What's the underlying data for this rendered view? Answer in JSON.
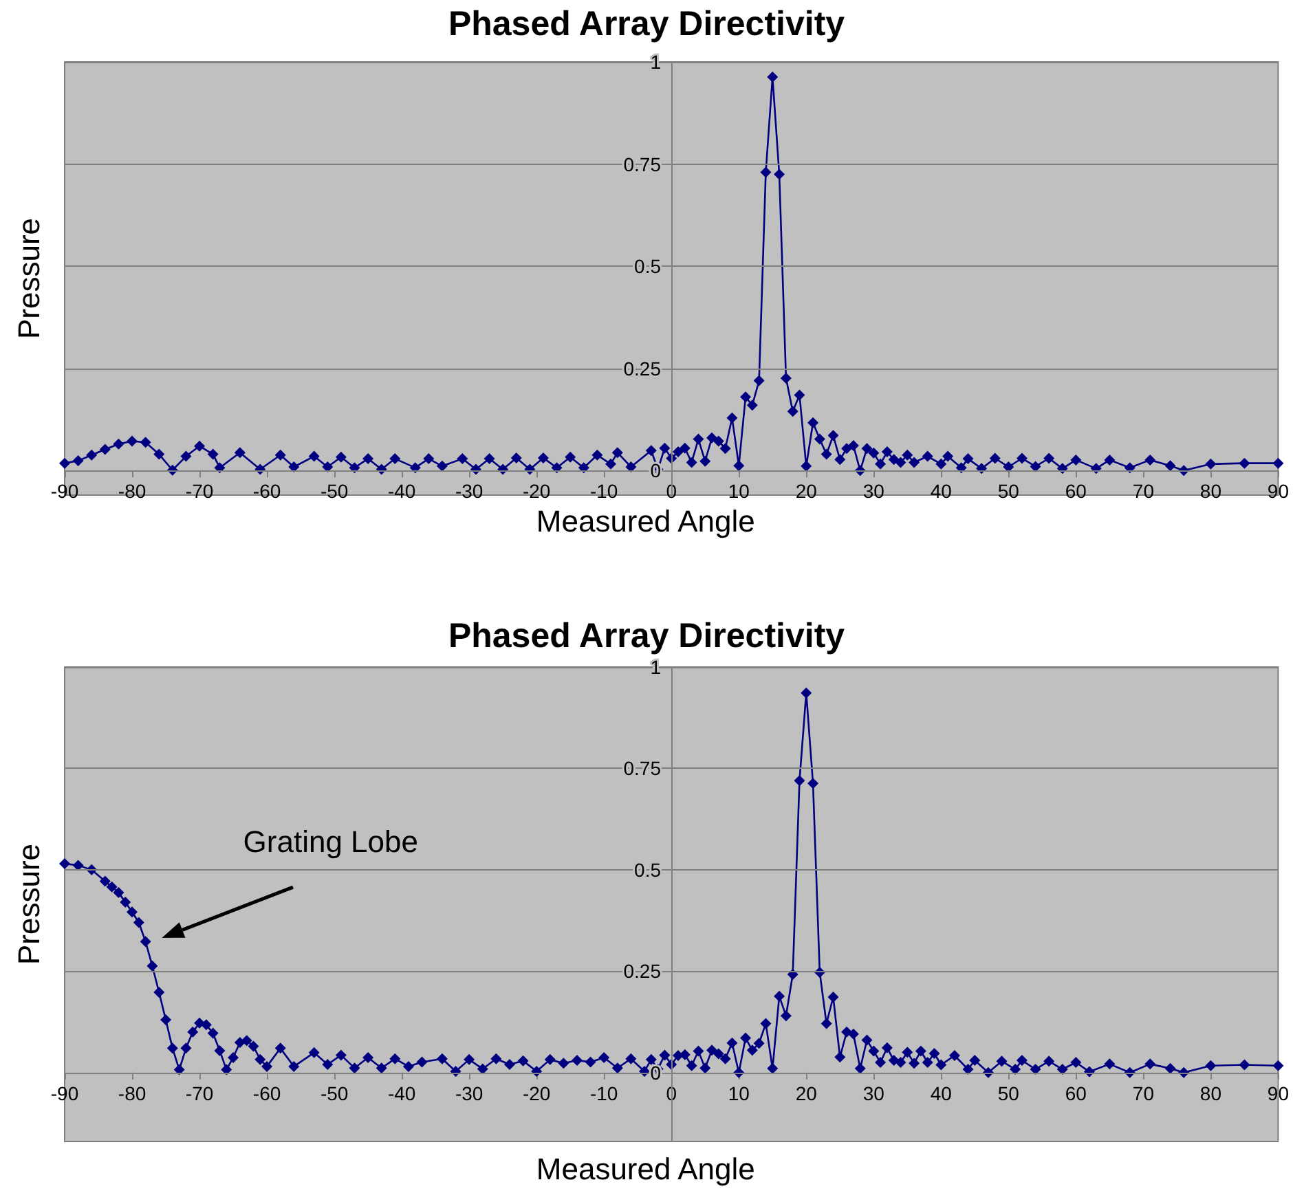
{
  "chart_data": [
    {
      "type": "line",
      "title": "Phased Array Directivity",
      "xlabel": "Measured Angle",
      "ylabel": "Pressure",
      "xlim": [
        -90,
        90
      ],
      "xticks": [
        -90,
        -80,
        -70,
        -60,
        -50,
        -40,
        -30,
        -20,
        -10,
        0,
        10,
        20,
        30,
        40,
        50,
        60,
        70,
        80,
        90
      ],
      "ylim": [
        -0.06,
        1
      ],
      "yticks": [
        0,
        0.25,
        0.5,
        0.75,
        1
      ],
      "grid": "y",
      "marker": "diamond",
      "line_style": "solid",
      "series": [
        {
          "color": "#000080",
          "x": [
            -90,
            -88,
            -86,
            -84,
            -82,
            -80,
            -78,
            -76,
            -74,
            -72,
            -70,
            -68,
            -67,
            -64,
            -61,
            -58,
            -56,
            -53,
            -51,
            -49,
            -47,
            -45,
            -43,
            -41,
            -38,
            -36,
            -34,
            -31,
            -29,
            -27,
            -25,
            -23,
            -21,
            -19,
            -17,
            -15,
            -13,
            -11,
            -9,
            -8,
            -6,
            -3,
            -2,
            -1,
            0,
            1,
            2,
            3,
            4,
            5,
            6,
            7,
            8,
            9,
            10,
            11,
            12,
            13,
            14,
            15,
            16,
            17,
            18,
            19,
            20,
            21,
            22,
            23,
            24,
            25,
            26,
            27,
            28,
            29,
            30,
            31,
            32,
            33,
            34,
            35,
            36,
            38,
            40,
            41,
            43,
            44,
            46,
            48,
            50,
            52,
            54,
            56,
            58,
            60,
            63,
            65,
            68,
            71,
            74,
            76,
            80,
            85,
            90
          ],
          "values": [
            0.018,
            0.024,
            0.038,
            0.052,
            0.065,
            0.072,
            0.069,
            0.04,
            0.001,
            0.035,
            0.06,
            0.04,
            0.007,
            0.044,
            0.003,
            0.038,
            0.009,
            0.035,
            0.009,
            0.033,
            0.007,
            0.029,
            0.003,
            0.029,
            0.007,
            0.029,
            0.011,
            0.029,
            0.003,
            0.029,
            0.003,
            0.031,
            0.003,
            0.031,
            0.007,
            0.033,
            0.007,
            0.038,
            0.016,
            0.044,
            0.009,
            0.049,
            0.003,
            0.055,
            0.03,
            0.046,
            0.055,
            0.02,
            0.077,
            0.023,
            0.08,
            0.072,
            0.054,
            0.129,
            0.012,
            0.18,
            0.16,
            0.22,
            0.73,
            0.963,
            0.725,
            0.226,
            0.145,
            0.185,
            0.011,
            0.117,
            0.077,
            0.04,
            0.086,
            0.027,
            0.054,
            0.061,
            0.0,
            0.054,
            0.043,
            0.016,
            0.046,
            0.027,
            0.02,
            0.038,
            0.02,
            0.035,
            0.016,
            0.035,
            0.007,
            0.029,
            0.005,
            0.03,
            0.009,
            0.03,
            0.01,
            0.03,
            0.005,
            0.026,
            0.005,
            0.026,
            0.007,
            0.026,
            0.012,
            0.0,
            0.016,
            0.018,
            0.018
          ]
        }
      ]
    },
    {
      "type": "line",
      "title": "Phased Array Directivity",
      "xlabel": "Measured Angle",
      "ylabel": "Pressure",
      "xlim": [
        -90,
        90
      ],
      "xticks": [
        -90,
        -80,
        -70,
        -60,
        -50,
        -40,
        -30,
        -20,
        -10,
        0,
        10,
        20,
        30,
        40,
        50,
        60,
        70,
        80,
        90
      ],
      "ylim": [
        -0.17,
        1
      ],
      "yticks": [
        0,
        0.25,
        0.5,
        0.75,
        1
      ],
      "grid": "y",
      "marker": "diamond",
      "line_style": "solid",
      "annotations": [
        "Grating Lobe"
      ],
      "series": [
        {
          "color": "#000080",
          "x": [
            -90,
            -88,
            -86,
            -84,
            -83,
            -82,
            -81,
            -80,
            -79,
            -78,
            -77,
            -76,
            -75,
            -74,
            -73,
            -72,
            -71,
            -70,
            -69,
            -68,
            -67,
            -66,
            -65,
            -64,
            -63,
            -62,
            -61,
            -60,
            -58,
            -56,
            -53,
            -51,
            -49,
            -47,
            -45,
            -43,
            -41,
            -39,
            -37,
            -34,
            -32,
            -30,
            -28,
            -26,
            -24,
            -22,
            -20,
            -18,
            -16,
            -14,
            -12,
            -10,
            -8,
            -6,
            -4,
            -3,
            -2,
            -1,
            0,
            1,
            2,
            3,
            4,
            5,
            6,
            7,
            8,
            9,
            10,
            11,
            12,
            13,
            14,
            15,
            16,
            17,
            18,
            19,
            20,
            21,
            22,
            23,
            24,
            25,
            26,
            27,
            28,
            29,
            30,
            31,
            32,
            33,
            34,
            35,
            36,
            37,
            38,
            39,
            40,
            42,
            44,
            45,
            47,
            49,
            51,
            52,
            54,
            56,
            58,
            60,
            62,
            65,
            68,
            71,
            74,
            76,
            80,
            85,
            90
          ],
          "values": [
            0.515,
            0.511,
            0.5,
            0.472,
            0.458,
            0.444,
            0.42,
            0.396,
            0.37,
            0.323,
            0.263,
            0.198,
            0.13,
            0.06,
            0.007,
            0.06,
            0.1,
            0.122,
            0.118,
            0.097,
            0.054,
            0.007,
            0.037,
            0.074,
            0.079,
            0.065,
            0.032,
            0.015,
            0.06,
            0.015,
            0.049,
            0.02,
            0.043,
            0.011,
            0.037,
            0.011,
            0.034,
            0.015,
            0.026,
            0.034,
            0.003,
            0.032,
            0.009,
            0.034,
            0.02,
            0.029,
            0.003,
            0.032,
            0.023,
            0.03,
            0.026,
            0.037,
            0.011,
            0.034,
            0.003,
            0.032,
            0.009,
            0.043,
            0.02,
            0.042,
            0.044,
            0.017,
            0.053,
            0.011,
            0.055,
            0.046,
            0.034,
            0.073,
            0.0,
            0.085,
            0.055,
            0.072,
            0.121,
            0.01,
            0.188,
            0.14,
            0.242,
            0.72,
            0.936,
            0.713,
            0.247,
            0.121,
            0.186,
            0.038,
            0.1,
            0.095,
            0.01,
            0.08,
            0.053,
            0.025,
            0.061,
            0.03,
            0.025,
            0.05,
            0.023,
            0.053,
            0.025,
            0.047,
            0.019,
            0.042,
            0.008,
            0.03,
            0.0,
            0.028,
            0.008,
            0.03,
            0.008,
            0.028,
            0.008,
            0.025,
            0.002,
            0.021,
            0.0,
            0.021,
            0.01,
            0.0,
            0.017,
            0.019,
            0.017
          ]
        }
      ]
    }
  ]
}
